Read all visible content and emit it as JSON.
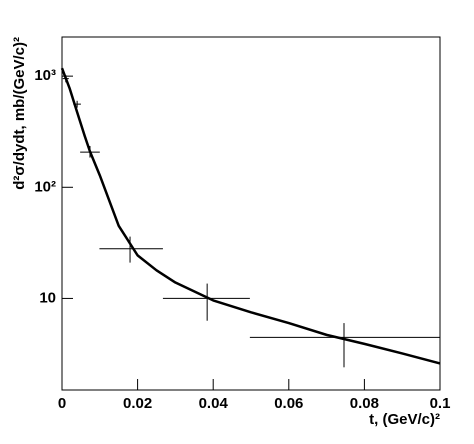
{
  "chart_data": {
    "type": "scatter",
    "x_label": "t, (GeV/c)²",
    "y_label": "d²σ/dydt, mb/(GeV/c)²",
    "log_y": true,
    "xlim": [
      0,
      0.1
    ],
    "ylim": [
      1.5,
      2250
    ],
    "xticks": [
      0,
      0.02,
      0.04,
      0.06,
      0.08,
      0.1
    ],
    "yticks": [
      10,
      {
        "value": 100,
        "label": "10²"
      },
      {
        "value": 1000,
        "label": "10³"
      }
    ],
    "color": "#000000",
    "series": [
      {
        "style": "points",
        "x": [
          0.001,
          0.004,
          0.0074,
          0.018,
          0.0384,
          0.0746
        ],
        "values": [
          950,
          560,
          207,
          28,
          10,
          4.46
        ],
        "x_low": [
          0.0002,
          0.003,
          0.0048,
          0.0099,
          0.0267,
          0.0497
        ],
        "x_high": [
          0.0018,
          0.005,
          0.01,
          0.0267,
          0.0497,
          0.1
        ],
        "y_low": [
          880,
          520,
          185,
          21,
          6.3,
          2.4
        ],
        "y_high": [
          1020,
          600,
          235,
          36,
          13.6,
          6.0
        ]
      },
      {
        "style": "line",
        "x": [
          0,
          0.002,
          0.004,
          0.006,
          0.0074,
          0.01,
          0.015,
          0.02,
          0.025,
          0.03,
          0.04,
          0.05,
          0.06,
          0.07,
          0.08,
          0.09,
          0.1
        ],
        "values": [
          1180,
          780,
          475,
          290,
          210,
          128,
          45,
          24.4,
          17.9,
          13.9,
          9.6,
          7.5,
          6.0,
          4.7,
          3.9,
          3.2,
          2.6
        ]
      }
    ]
  }
}
